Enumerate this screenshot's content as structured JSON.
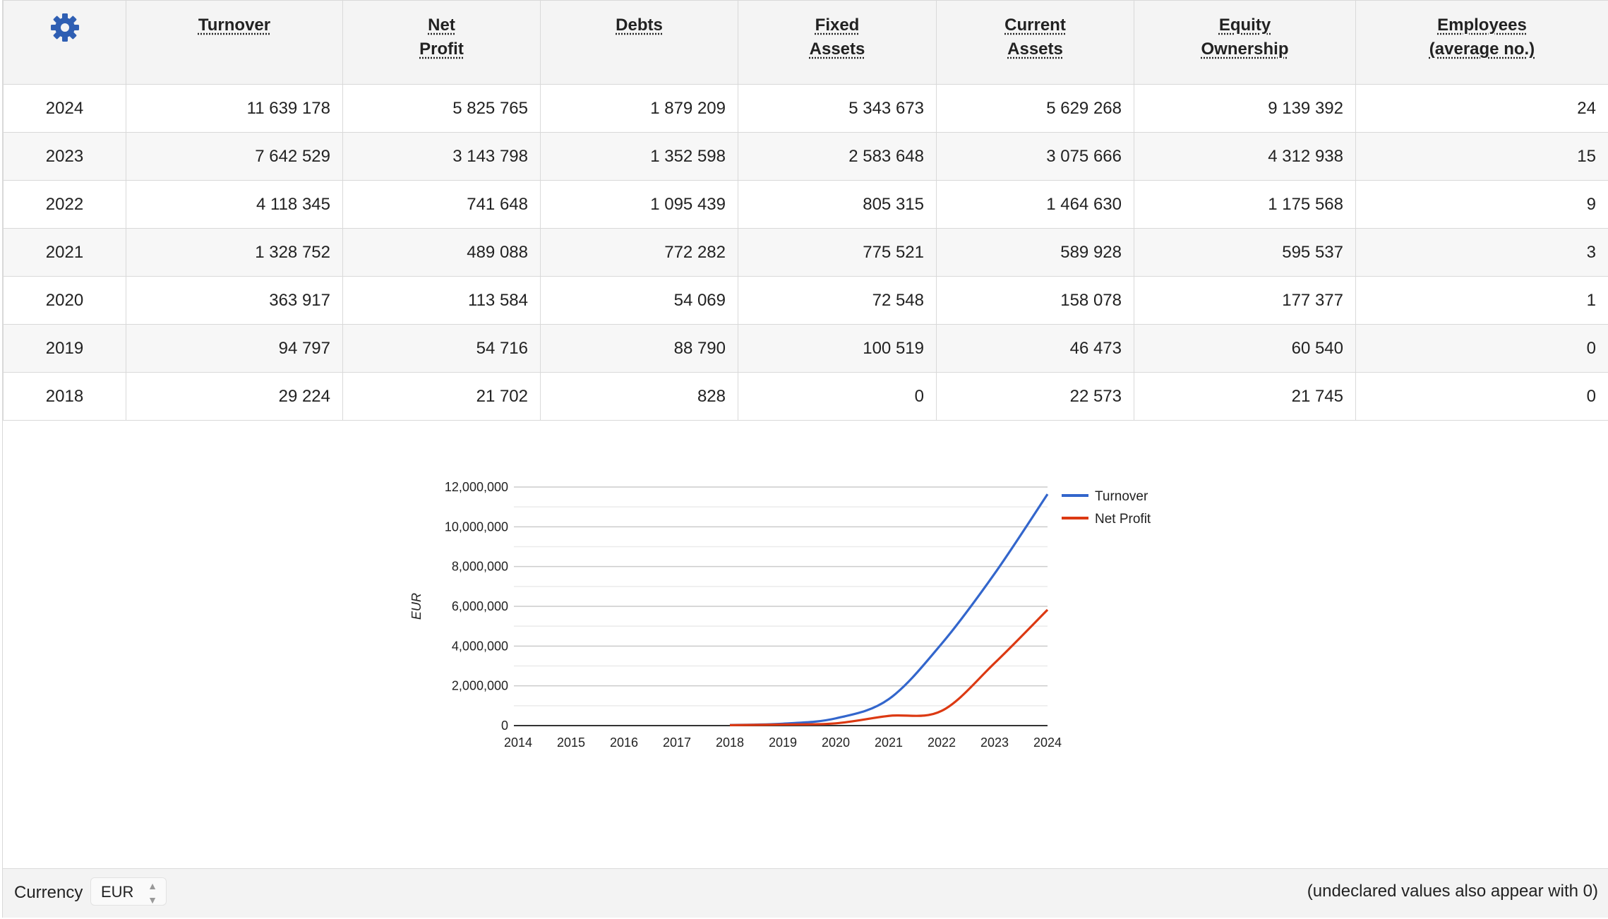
{
  "table": {
    "settings_icon": "gear-icon",
    "headers": [
      "Turnover",
      "Net\nProfit",
      "Debts",
      "Fixed\nAssets",
      "Current\nAssets",
      "Equity\nOwnership",
      "Employees\n(average no.)"
    ],
    "rows": [
      [
        "2024",
        "11 639 178",
        "5 825 765",
        "1 879 209",
        "5 343 673",
        "5 629 268",
        "9 139 392",
        "24"
      ],
      [
        "2023",
        "7 642 529",
        "3 143 798",
        "1 352 598",
        "2 583 648",
        "3 075 666",
        "4 312 938",
        "15"
      ],
      [
        "2022",
        "4 118 345",
        "741 648",
        "1 095 439",
        "805 315",
        "1 464 630",
        "1 175 568",
        "9"
      ],
      [
        "2021",
        "1 328 752",
        "489 088",
        "772 282",
        "775 521",
        "589 928",
        "595 537",
        "3"
      ],
      [
        "2020",
        "363 917",
        "113 584",
        "54 069",
        "72 548",
        "158 078",
        "177 377",
        "1"
      ],
      [
        "2019",
        "94 797",
        "54 716",
        "88 790",
        "100 519",
        "46 473",
        "60 540",
        "0"
      ],
      [
        "2018",
        "29 224",
        "21 702",
        "828",
        "0",
        "22 573",
        "21 745",
        "0"
      ]
    ]
  },
  "chart_data": {
    "type": "line",
    "x": [
      2014,
      2015,
      2016,
      2017,
      2018,
      2019,
      2020,
      2021,
      2022,
      2023,
      2024
    ],
    "x_tick_labels": [
      "2014",
      "2015",
      "2016",
      "2017",
      "2018",
      "2019",
      "2020",
      "2021",
      "2022",
      "2023",
      "2024"
    ],
    "ylabel": "EUR",
    "ylim": [
      0,
      12000000
    ],
    "y_tick_labels": [
      "0",
      "2,000,000",
      "4,000,000",
      "6,000,000",
      "8,000,000",
      "10,000,000",
      "12,000,000"
    ],
    "grid": true,
    "legend_position": "right",
    "series": [
      {
        "name": "Turnover",
        "color": "#3366cc",
        "x": [
          2018,
          2019,
          2020,
          2021,
          2022,
          2023,
          2024
        ],
        "values": [
          29224,
          94797,
          363917,
          1328752,
          4118345,
          7642529,
          11639178
        ]
      },
      {
        "name": "Net Profit",
        "color": "#dc3912",
        "x": [
          2018,
          2019,
          2020,
          2021,
          2022,
          2023,
          2024
        ],
        "values": [
          21702,
          54716,
          113584,
          489088,
          741648,
          3143798,
          5825765
        ]
      }
    ]
  },
  "footer": {
    "currency_label": "Currency",
    "currency_value": "EUR",
    "note": "(undeclared values also appear with 0)"
  }
}
